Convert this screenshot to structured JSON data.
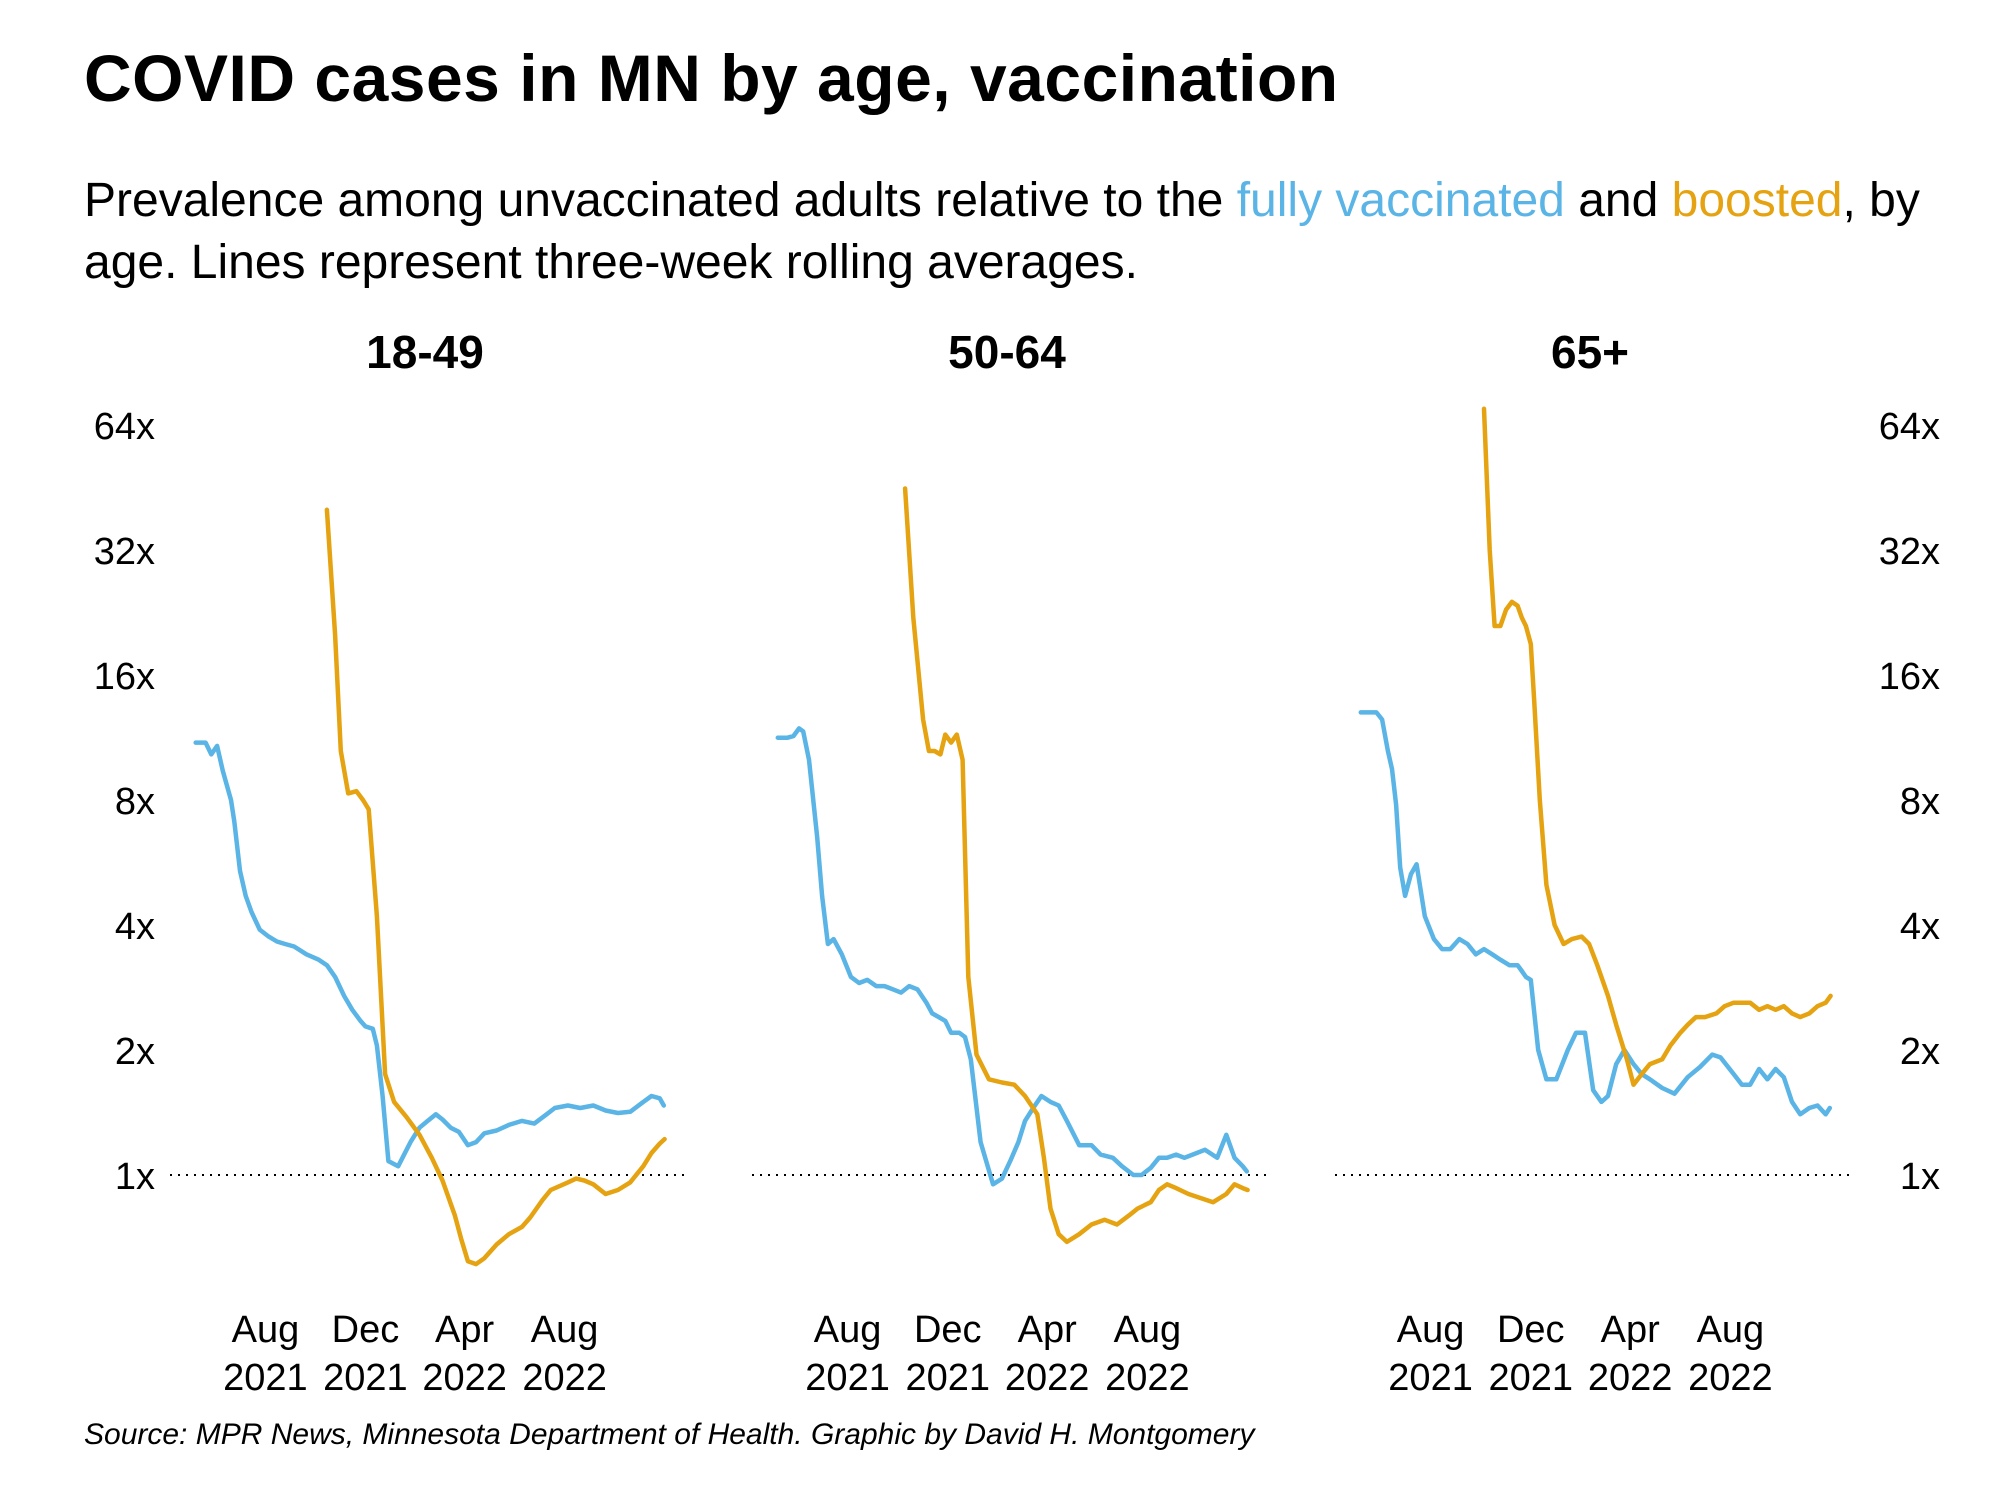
{
  "title": "COVID cases in MN by age, vaccination",
  "subtitle": {
    "part1": "Prevalence among unvaccinated adults relative to the ",
    "vaccinated_label": "fully vaccinated",
    "part2": " and ",
    "boosted_label": "boosted",
    "part3": ", by age. Lines represent three-week rolling averages."
  },
  "source": "Source: MPR News, Minnesota Department of Health. Graphic by David H. Montgomery",
  "colors": {
    "fully_vaccinated": "#5ab4e5",
    "boosted": "#e5a211",
    "reference_line": "#000000"
  },
  "chart_data": [
    {
      "type": "line",
      "title": "18-49",
      "y_scale": "log2",
      "ylim": [
        0.6,
        70
      ],
      "y_ticks": [
        1,
        2,
        4,
        8,
        16,
        32,
        64
      ],
      "y_tick_labels": [
        "1x",
        "2x",
        "4x",
        "8x",
        "16x",
        "32x",
        "64x"
      ],
      "y_axis_side": "left",
      "x_ticks": [
        "2021-08-01",
        "2021-12-01",
        "2022-04-01",
        "2022-08-01"
      ],
      "x_tick_labels": [
        [
          "Aug",
          "2021"
        ],
        [
          "Dec",
          "2021"
        ],
        [
          "Apr",
          "2022"
        ],
        [
          "Aug",
          "2022"
        ]
      ],
      "reference_line": 1,
      "series": [
        {
          "name": "fully vaccinated",
          "x": [
            "2021-05-08",
            "2021-05-20",
            "2021-05-27",
            "2021-06-03",
            "2021-06-10",
            "2021-06-20",
            "2021-06-24",
            "2021-07-01",
            "2021-07-08",
            "2021-07-15",
            "2021-07-25",
            "2021-08-05",
            "2021-08-15",
            "2021-08-25",
            "2021-09-05",
            "2021-09-20",
            "2021-10-05",
            "2021-10-15",
            "2021-10-25",
            "2021-11-05",
            "2021-11-15",
            "2021-11-25",
            "2021-12-01",
            "2021-12-10",
            "2021-12-15",
            "2021-12-22",
            "2021-12-29",
            "2022-01-10",
            "2022-01-25",
            "2022-02-05",
            "2022-02-15",
            "2022-02-25",
            "2022-03-05",
            "2022-03-15",
            "2022-03-25",
            "2022-04-05",
            "2022-04-15",
            "2022-04-25",
            "2022-05-10",
            "2022-05-25",
            "2022-06-10",
            "2022-06-25",
            "2022-07-10",
            "2022-07-20",
            "2022-08-05",
            "2022-08-20",
            "2022-09-05",
            "2022-09-20",
            "2022-10-05",
            "2022-10-20",
            "2022-11-05",
            "2022-11-15",
            "2022-11-25",
            "2022-11-30"
          ],
          "values": [
            11.0,
            11.0,
            10.3,
            10.8,
            9.4,
            8.0,
            7.1,
            5.4,
            4.7,
            4.3,
            3.9,
            3.75,
            3.65,
            3.6,
            3.55,
            3.4,
            3.3,
            3.2,
            3.0,
            2.7,
            2.5,
            2.35,
            2.28,
            2.25,
            2.05,
            1.55,
            1.08,
            1.05,
            1.2,
            1.3,
            1.35,
            1.4,
            1.36,
            1.3,
            1.27,
            1.18,
            1.2,
            1.26,
            1.28,
            1.32,
            1.35,
            1.33,
            1.4,
            1.45,
            1.47,
            1.45,
            1.47,
            1.43,
            1.41,
            1.42,
            1.5,
            1.55,
            1.53,
            1.47
          ]
        },
        {
          "name": "boosted",
          "x": [
            "2021-10-15",
            "2021-10-25",
            "2021-11-01",
            "2021-11-10",
            "2021-11-20",
            "2021-11-28",
            "2021-12-05",
            "2021-12-15",
            "2021-12-25",
            "2022-01-05",
            "2022-01-20",
            "2022-02-05",
            "2022-02-20",
            "2022-03-05",
            "2022-03-20",
            "2022-03-28",
            "2022-04-05",
            "2022-04-15",
            "2022-04-25",
            "2022-05-10",
            "2022-05-25",
            "2022-06-10",
            "2022-06-20",
            "2022-07-05",
            "2022-07-15",
            "2022-08-05",
            "2022-08-15",
            "2022-08-25",
            "2022-09-05",
            "2022-09-20",
            "2022-10-05",
            "2022-10-20",
            "2022-11-05",
            "2022-11-15",
            "2022-11-25",
            "2022-12-01"
          ],
          "values": [
            40,
            20,
            10.5,
            8.3,
            8.4,
            8.0,
            7.6,
            4.2,
            1.75,
            1.5,
            1.38,
            1.25,
            1.1,
            0.97,
            0.8,
            0.7,
            0.62,
            0.61,
            0.63,
            0.68,
            0.72,
            0.75,
            0.79,
            0.87,
            0.92,
            0.96,
            0.98,
            0.97,
            0.95,
            0.9,
            0.92,
            0.96,
            1.05,
            1.13,
            1.19,
            1.22
          ]
        }
      ]
    },
    {
      "type": "line",
      "title": "50-64",
      "y_scale": "log2",
      "ylim": [
        0.6,
        70
      ],
      "y_ticks": [
        1,
        2,
        4,
        8,
        16,
        32,
        64
      ],
      "x_ticks": [
        "2021-08-01",
        "2021-12-01",
        "2022-04-01",
        "2022-08-01"
      ],
      "x_tick_labels": [
        [
          "Aug",
          "2021"
        ],
        [
          "Dec",
          "2021"
        ],
        [
          "Apr",
          "2022"
        ],
        [
          "Aug",
          "2022"
        ]
      ],
      "reference_line": 1,
      "series": [
        {
          "name": "fully vaccinated",
          "x": [
            "2021-05-08",
            "2021-05-20",
            "2021-05-27",
            "2021-06-03",
            "2021-06-08",
            "2021-06-15",
            "2021-06-25",
            "2021-07-01",
            "2021-07-08",
            "2021-07-15",
            "2021-07-25",
            "2021-08-05",
            "2021-08-15",
            "2021-08-25",
            "2021-09-05",
            "2021-09-15",
            "2021-09-25",
            "2021-10-05",
            "2021-10-15",
            "2021-10-25",
            "2021-11-05",
            "2021-11-12",
            "2021-11-20",
            "2021-11-28",
            "2021-12-05",
            "2021-12-15",
            "2021-12-22",
            "2021-12-29",
            "2022-01-10",
            "2022-01-25",
            "2022-02-05",
            "2022-02-15",
            "2022-02-25",
            "2022-03-05",
            "2022-03-15",
            "2022-03-25",
            "2022-04-05",
            "2022-04-15",
            "2022-04-25",
            "2022-05-10",
            "2022-05-25",
            "2022-06-05",
            "2022-06-20",
            "2022-07-01",
            "2022-07-15",
            "2022-07-25",
            "2022-08-05",
            "2022-08-15",
            "2022-08-25",
            "2022-09-05",
            "2022-09-15",
            "2022-09-25",
            "2022-10-10",
            "2022-10-25",
            "2022-11-05",
            "2022-11-15",
            "2022-11-25",
            "2022-11-30"
          ],
          "values": [
            11.3,
            11.3,
            11.4,
            11.9,
            11.7,
            10.0,
            6.5,
            4.7,
            3.6,
            3.7,
            3.4,
            3.0,
            2.9,
            2.95,
            2.85,
            2.85,
            2.8,
            2.75,
            2.85,
            2.8,
            2.6,
            2.45,
            2.4,
            2.35,
            2.2,
            2.2,
            2.15,
            1.9,
            1.2,
            0.95,
            0.98,
            1.08,
            1.2,
            1.35,
            1.45,
            1.55,
            1.5,
            1.47,
            1.35,
            1.18,
            1.18,
            1.12,
            1.1,
            1.05,
            1.0,
            1.0,
            1.04,
            1.1,
            1.1,
            1.12,
            1.1,
            1.12,
            1.15,
            1.1,
            1.25,
            1.1,
            1.05,
            1.02
          ]
        },
        {
          "name": "boosted",
          "x": [
            "2021-10-10",
            "2021-10-20",
            "2021-11-01",
            "2021-11-08",
            "2021-11-15",
            "2021-11-22",
            "2021-11-28",
            "2021-12-05",
            "2021-12-12",
            "2021-12-19",
            "2021-12-26",
            "2022-01-05",
            "2022-01-20",
            "2022-02-05",
            "2022-02-20",
            "2022-03-05",
            "2022-03-20",
            "2022-03-28",
            "2022-04-05",
            "2022-04-15",
            "2022-04-25",
            "2022-05-10",
            "2022-05-25",
            "2022-06-10",
            "2022-06-25",
            "2022-07-10",
            "2022-07-20",
            "2022-08-05",
            "2022-08-15",
            "2022-08-25",
            "2022-09-05",
            "2022-09-20",
            "2022-10-05",
            "2022-10-20",
            "2022-11-05",
            "2022-11-15",
            "2022-11-25",
            "2022-12-01"
          ],
          "values": [
            45,
            22,
            12.5,
            10.5,
            10.5,
            10.3,
            11.5,
            11.0,
            11.5,
            10.0,
            3.0,
            1.95,
            1.7,
            1.67,
            1.65,
            1.55,
            1.4,
            1.1,
            0.83,
            0.72,
            0.69,
            0.72,
            0.76,
            0.78,
            0.76,
            0.8,
            0.83,
            0.86,
            0.92,
            0.95,
            0.93,
            0.9,
            0.88,
            0.86,
            0.9,
            0.95,
            0.93,
            0.92
          ]
        }
      ]
    },
    {
      "type": "line",
      "title": "65+",
      "y_scale": "log2",
      "ylim": [
        0.6,
        70
      ],
      "y_ticks": [
        1,
        2,
        4,
        8,
        16,
        32,
        64
      ],
      "y_tick_labels": [
        "1x",
        "2x",
        "4x",
        "8x",
        "16x",
        "32x",
        "64x"
      ],
      "y_axis_side": "right",
      "x_ticks": [
        "2021-08-01",
        "2021-12-01",
        "2022-04-01",
        "2022-08-01"
      ],
      "x_tick_labels": [
        [
          "Aug",
          "2021"
        ],
        [
          "Dec",
          "2021"
        ],
        [
          "Apr",
          "2022"
        ],
        [
          "Aug",
          "2022"
        ]
      ],
      "reference_line": 1,
      "series": [
        {
          "name": "fully vaccinated",
          "x": [
            "2021-05-08",
            "2021-05-20",
            "2021-05-27",
            "2021-06-03",
            "2021-06-10",
            "2021-06-15",
            "2021-06-20",
            "2021-06-25",
            "2021-07-01",
            "2021-07-08",
            "2021-07-15",
            "2021-07-25",
            "2021-08-05",
            "2021-08-15",
            "2021-08-25",
            "2021-09-05",
            "2021-09-15",
            "2021-09-25",
            "2021-10-05",
            "2021-10-15",
            "2021-10-25",
            "2021-11-05",
            "2021-11-15",
            "2021-11-20",
            "2021-11-25",
            "2021-12-01",
            "2021-12-10",
            "2021-12-20",
            "2022-01-01",
            "2022-01-15",
            "2022-01-25",
            "2022-02-05",
            "2022-02-15",
            "2022-02-25",
            "2022-03-05",
            "2022-03-15",
            "2022-03-25",
            "2022-04-05",
            "2022-04-15",
            "2022-04-25",
            "2022-05-10",
            "2022-05-25",
            "2022-06-10",
            "2022-06-25",
            "2022-07-10",
            "2022-07-20",
            "2022-08-05",
            "2022-08-15",
            "2022-08-25",
            "2022-09-05",
            "2022-09-15",
            "2022-09-25",
            "2022-10-05",
            "2022-10-15",
            "2022-10-25",
            "2022-11-05",
            "2022-11-15",
            "2022-11-25",
            "2022-11-30"
          ],
          "values": [
            13,
            13,
            13,
            12.5,
            10.5,
            9.5,
            7.8,
            5.5,
            4.7,
            5.3,
            5.6,
            4.2,
            3.7,
            3.5,
            3.5,
            3.7,
            3.6,
            3.4,
            3.5,
            3.4,
            3.3,
            3.2,
            3.2,
            3.1,
            3.0,
            2.95,
            2.0,
            1.7,
            1.7,
            2.0,
            2.2,
            2.2,
            1.6,
            1.5,
            1.55,
            1.85,
            2.0,
            1.85,
            1.75,
            1.7,
            1.62,
            1.57,
            1.72,
            1.82,
            1.95,
            1.92,
            1.75,
            1.65,
            1.65,
            1.8,
            1.7,
            1.8,
            1.72,
            1.5,
            1.4,
            1.45,
            1.47,
            1.4,
            1.45
          ]
        },
        {
          "name": "boosted",
          "x": [
            "2021-10-05",
            "2021-10-12",
            "2021-10-18",
            "2021-10-25",
            "2021-11-01",
            "2021-11-08",
            "2021-11-15",
            "2021-11-20",
            "2021-11-25",
            "2021-12-01",
            "2021-12-05",
            "2021-12-12",
            "2021-12-20",
            "2021-12-30",
            "2022-01-10",
            "2022-01-20",
            "2022-02-01",
            "2022-02-10",
            "2022-02-20",
            "2022-03-05",
            "2022-03-15",
            "2022-03-28",
            "2022-04-05",
            "2022-04-15",
            "2022-04-25",
            "2022-05-10",
            "2022-05-20",
            "2022-06-01",
            "2022-06-10",
            "2022-06-20",
            "2022-07-01",
            "2022-07-15",
            "2022-07-25",
            "2022-08-05",
            "2022-08-15",
            "2022-08-25",
            "2022-09-05",
            "2022-09-15",
            "2022-09-25",
            "2022-10-05",
            "2022-10-15",
            "2022-10-25",
            "2022-11-05",
            "2022-11-15",
            "2022-11-25",
            "2022-12-01"
          ],
          "values": [
            70,
            32,
            21,
            21,
            23,
            24,
            23.5,
            22,
            21,
            19,
            14,
            8.0,
            5.0,
            4.0,
            3.6,
            3.7,
            3.75,
            3.6,
            3.2,
            2.7,
            2.3,
            1.9,
            1.65,
            1.75,
            1.85,
            1.9,
            2.05,
            2.2,
            2.3,
            2.4,
            2.4,
            2.45,
            2.55,
            2.6,
            2.6,
            2.6,
            2.5,
            2.55,
            2.5,
            2.55,
            2.45,
            2.4,
            2.45,
            2.55,
            2.6,
            2.7
          ]
        }
      ]
    }
  ]
}
